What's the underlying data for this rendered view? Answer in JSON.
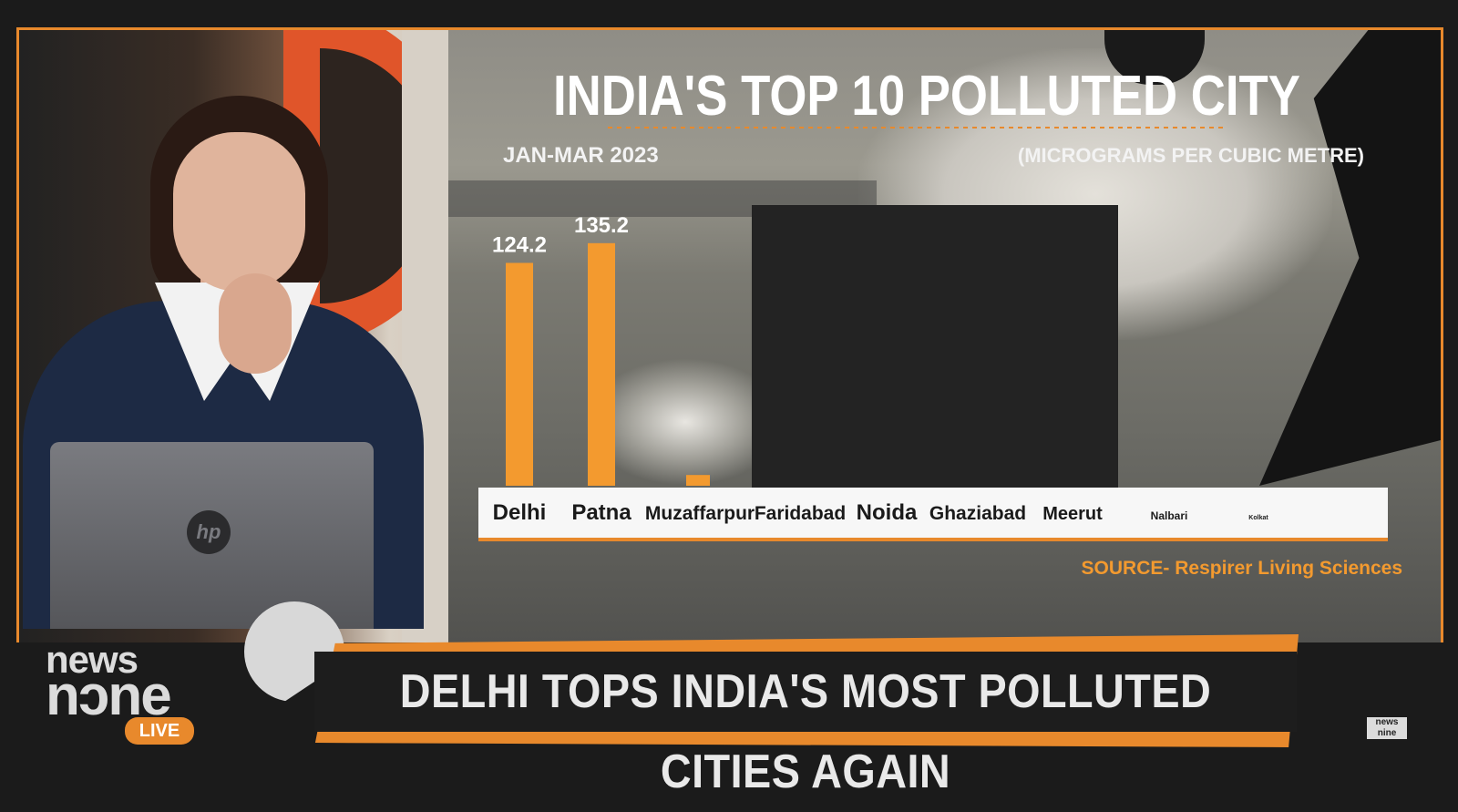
{
  "chart_data": {
    "type": "bar",
    "title": "INDIA'S TOP 10 POLLUTED CITY",
    "subtitle_left": "JAN-MAR 2023",
    "subtitle_right": "(MICROGRAMS PER CUBIC METRE)",
    "categories": [
      "Delhi",
      "Patna",
      "Muzaffarpur",
      "Faridabad",
      "Noida",
      "Ghaziabad",
      "Meerut",
      "Nalbari",
      "Kolkat",
      ""
    ],
    "values": [
      124.2,
      135.2,
      6,
      null,
      null,
      null,
      null,
      null,
      null,
      null
    ],
    "value_labels": [
      "124.2",
      "135.2",
      "",
      "",
      "",
      "",
      "",
      "",
      "",
      ""
    ],
    "bar_color": "#f39a2f",
    "ylim": [
      0,
      160
    ],
    "source": "SOURCE- Respirer Living Sciences"
  },
  "lower_third": {
    "headline": "DELHI TOPS INDIA'S MOST POLLUTED CITIES AGAIN",
    "logo_news": "news",
    "logo_nine": "nɔne",
    "live_label": "LIVE",
    "corner_logo": "news nine"
  },
  "studio": {
    "laptop_brand": "hp"
  },
  "colors": {
    "accent": "#e8892c",
    "headline_bg": "#1d1d1d",
    "title_text": "#ffffff"
  }
}
